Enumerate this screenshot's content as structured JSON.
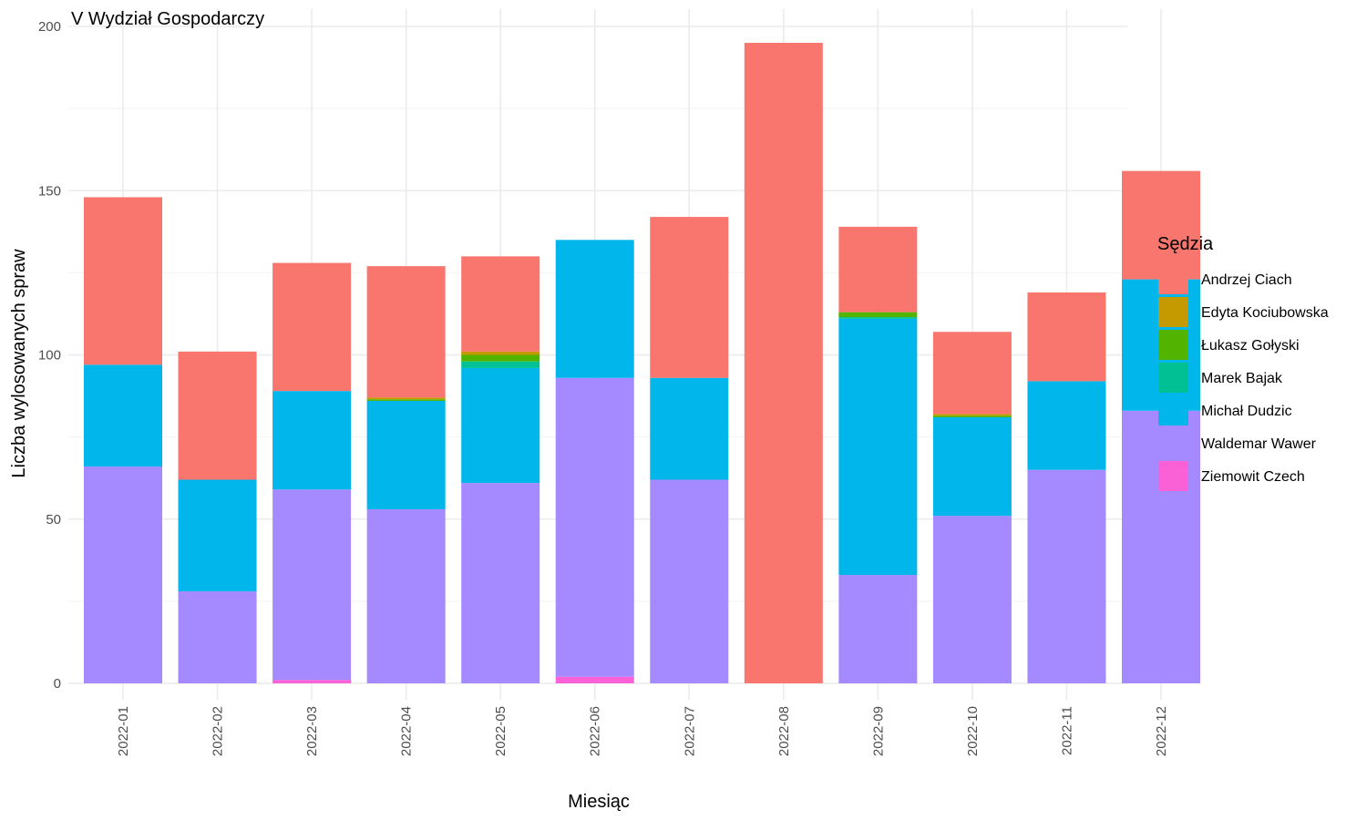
{
  "chart_data": {
    "type": "bar",
    "stacked": true,
    "title": "V Wydział Gospodarczy",
    "xlabel": "Miesiąc",
    "ylabel": "Liczba wylosowanych spraw",
    "ylim": [
      0,
      200
    ],
    "yticks": [
      "0",
      "50",
      "100",
      "150",
      "200"
    ],
    "grid": true,
    "legend_position": "right",
    "legend_title": "Sędzia",
    "categories": [
      "2022-01",
      "2022-02",
      "2022-03",
      "2022-04",
      "2022-05",
      "2022-06",
      "2022-07",
      "2022-08",
      "2022-09",
      "2022-10",
      "2022-11",
      "2022-12"
    ],
    "series": [
      {
        "name": "Andrzej Ciach",
        "color": "#F8766D",
        "values": [
          51,
          39,
          39,
          40,
          29,
          0,
          49,
          195,
          26,
          25,
          27,
          33
        ]
      },
      {
        "name": "Edyta Kociubowska",
        "color": "#C49A00",
        "values": [
          0,
          0,
          0,
          0.5,
          1,
          0,
          0,
          0,
          0,
          0.5,
          0,
          0
        ]
      },
      {
        "name": "Łukasz Gołyski",
        "color": "#53B400",
        "values": [
          0,
          0,
          0,
          0.5,
          2,
          0,
          0,
          0,
          1.5,
          0.5,
          0,
          0
        ]
      },
      {
        "name": "Marek Bajak",
        "color": "#00C094",
        "values": [
          0,
          0,
          0,
          0,
          2,
          0,
          0,
          0,
          0.5,
          0,
          0,
          0
        ]
      },
      {
        "name": "Michał Dudzic",
        "color": "#00B6EB",
        "values": [
          31,
          34,
          30,
          33,
          35,
          42,
          31,
          0,
          78,
          30,
          27,
          40
        ]
      },
      {
        "name": "Waldemar Wawer",
        "color": "#A58AFF",
        "values": [
          66,
          28,
          58,
          53,
          61,
          91,
          62,
          0,
          33,
          51,
          65,
          83
        ]
      },
      {
        "name": "Ziemowit Czech",
        "color": "#FB61D7",
        "values": [
          0,
          0,
          1,
          0,
          0,
          2,
          0,
          0,
          0,
          0,
          0,
          0
        ]
      }
    ]
  }
}
